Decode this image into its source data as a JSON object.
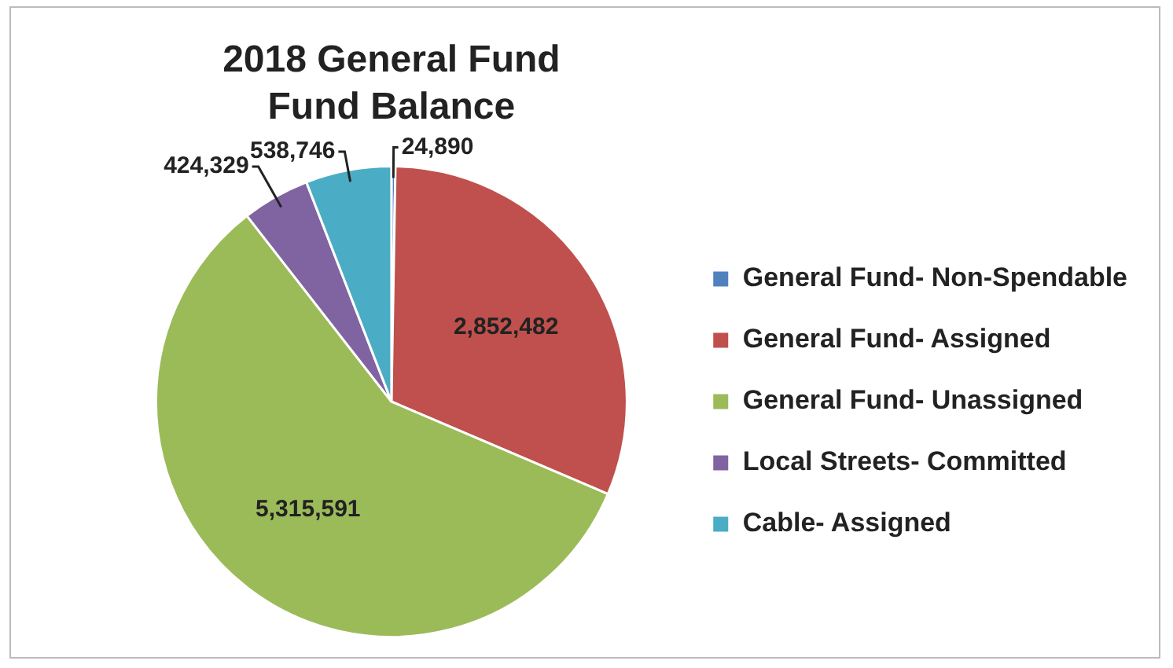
{
  "chart_data": {
    "type": "pie",
    "title": "2018 General Fund\nFund Balance",
    "categories": [
      "General Fund- Non-Spendable",
      "General Fund- Assigned",
      "General Fund- Unassigned",
      "Local Streets- Committed",
      "Cable- Assigned"
    ],
    "values": [
      24890,
      2852482,
      5315591,
      424329,
      538746
    ],
    "colors": [
      "#4f81bd",
      "#c0504d",
      "#9bbb59",
      "#8064a2",
      "#4bacc6"
    ],
    "value_labels": [
      "24,890",
      "2,852,482",
      "5,315,591",
      "424,329",
      "538,746"
    ],
    "legend": "right"
  }
}
